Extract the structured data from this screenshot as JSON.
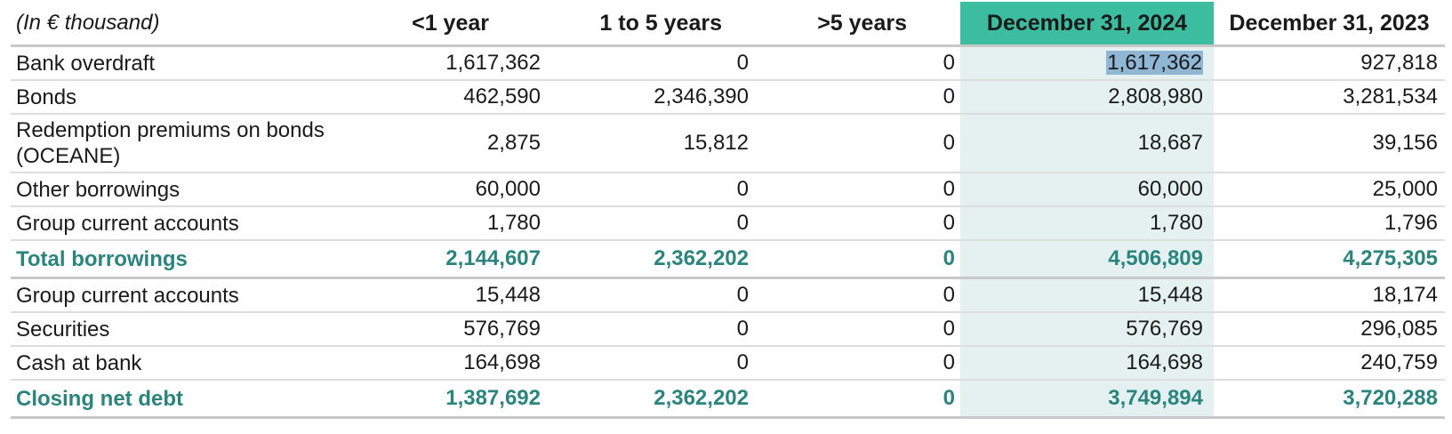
{
  "header": {
    "label": "(In € thousand)",
    "lt1": "<1 year",
    "y1to5": "1 to 5 years",
    "gt5": ">5 years",
    "dec2024": "December 31, 2024",
    "dec2023": "December 31, 2023"
  },
  "colors": {
    "highlight_header": "#3dbd9f",
    "highlight_column": "#e5f1f1",
    "total_text": "#2a857e",
    "selection": "#8fb6d2"
  },
  "rows": [
    {
      "label": "Bank overdraft",
      "lt1": "1,617,362",
      "y1to5": "0",
      "gt5": "0",
      "dec2024": "1,617,362",
      "dec2023": "927,818"
    },
    {
      "label": "Bonds",
      "lt1": "462,590",
      "y1to5": "2,346,390",
      "gt5": "0",
      "dec2024": "2,808,980",
      "dec2023": "3,281,534"
    },
    {
      "label": "Redemption premiums on bonds (OCEANE)",
      "lt1": "2,875",
      "y1to5": "15,812",
      "gt5": "0",
      "dec2024": "18,687",
      "dec2023": "39,156"
    },
    {
      "label": "Other borrowings",
      "lt1": "60,000",
      "y1to5": "0",
      "gt5": "0",
      "dec2024": "60,000",
      "dec2023": "25,000"
    },
    {
      "label": "Group current accounts",
      "lt1": "1,780",
      "y1to5": "0",
      "gt5": "0",
      "dec2024": "1,780",
      "dec2023": "1,796"
    },
    {
      "label": "Total borrowings",
      "lt1": "2,144,607",
      "y1to5": "2,362,202",
      "gt5": "0",
      "dec2024": "4,506,809",
      "dec2023": "4,275,305"
    },
    {
      "label": "Group current accounts",
      "lt1": "15,448",
      "y1to5": "0",
      "gt5": "0",
      "dec2024": "15,448",
      "dec2023": "18,174"
    },
    {
      "label": "Securities",
      "lt1": "576,769",
      "y1to5": "0",
      "gt5": "0",
      "dec2024": "576,769",
      "dec2023": "296,085"
    },
    {
      "label": "Cash at bank",
      "lt1": "164,698",
      "y1to5": "0",
      "gt5": "0",
      "dec2024": "164,698",
      "dec2023": "240,759"
    },
    {
      "label": "Closing net debt",
      "lt1": "1,387,692",
      "y1to5": "2,362,202",
      "gt5": "0",
      "dec2024": "3,749,894",
      "dec2023": "3,720,288"
    }
  ]
}
